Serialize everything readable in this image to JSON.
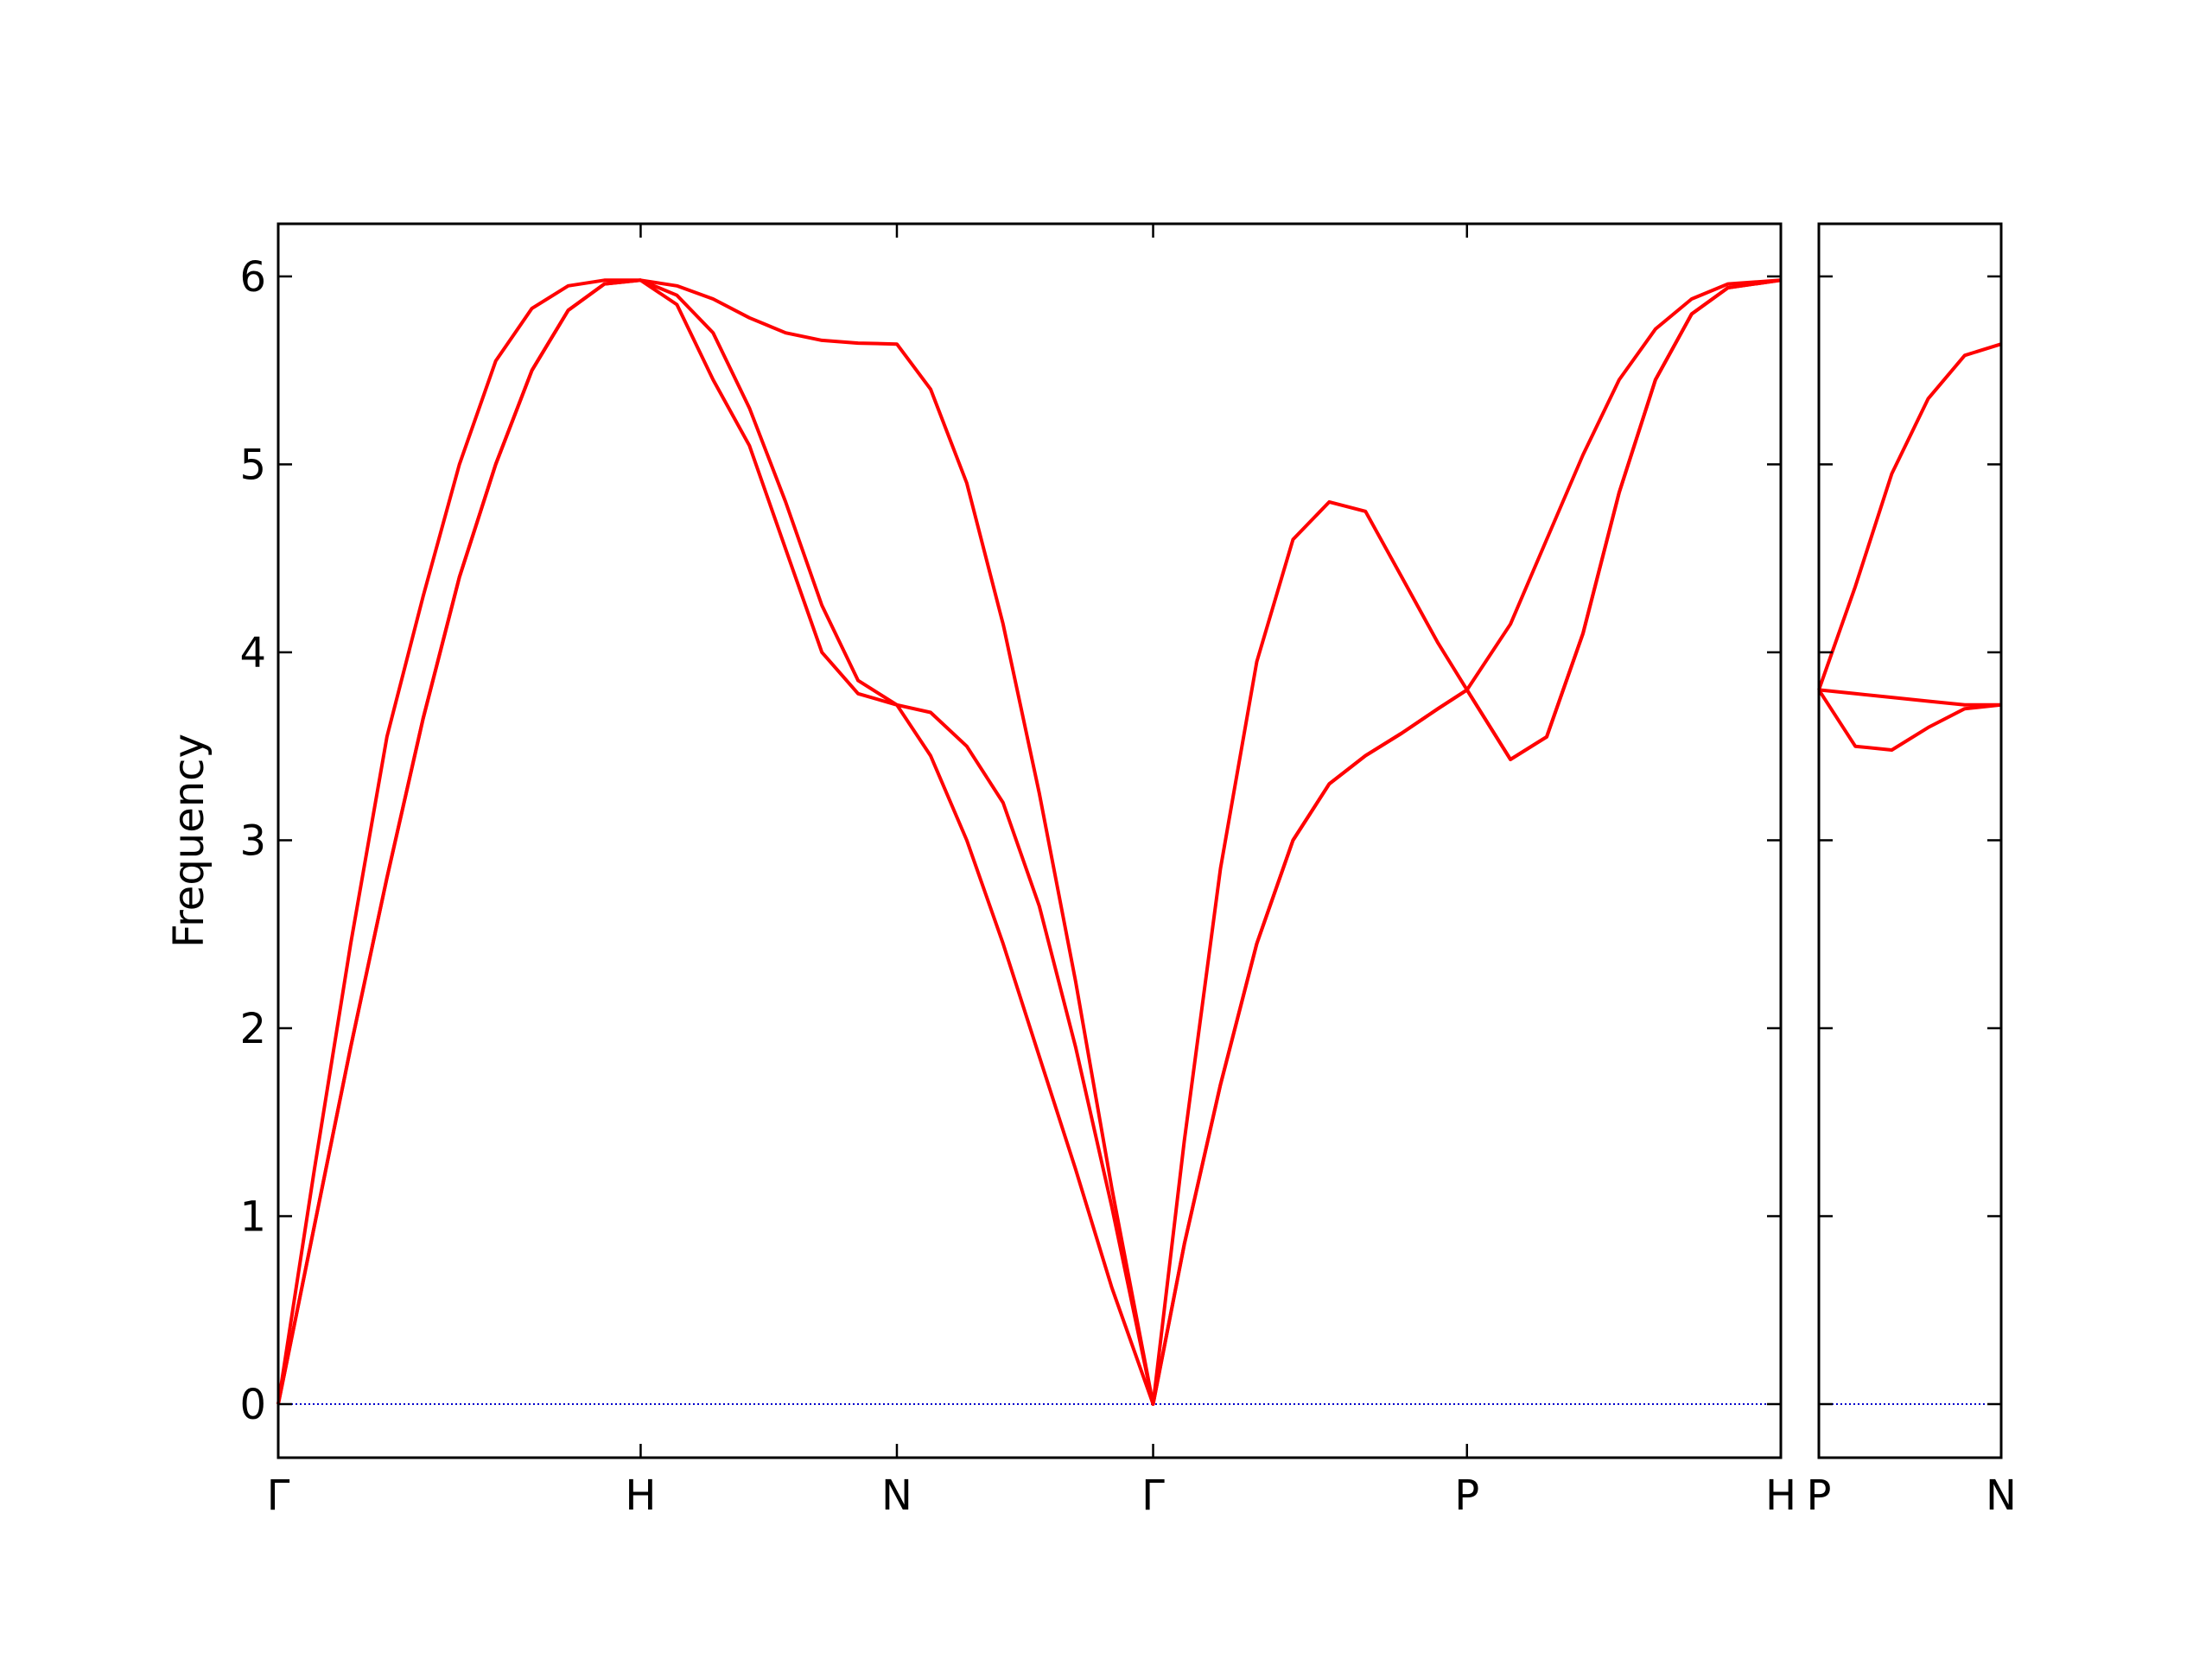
{
  "chart_data": [
    {
      "type": "line",
      "ylabel": "Frequency",
      "xlim": [
        0,
        4.146
      ],
      "ylim": [
        -0.285,
        6.28
      ],
      "xticks": [
        {
          "value": 0,
          "label": "Γ"
        },
        {
          "value": 1,
          "label": "H"
        },
        {
          "value": 1.707,
          "label": "N"
        },
        {
          "value": 2.414,
          "label": "Γ"
        },
        {
          "value": 3.28,
          "label": "P"
        },
        {
          "value": 4.146,
          "label": "H"
        }
      ],
      "yticks": [
        0,
        1,
        2,
        3,
        4,
        5,
        6
      ],
      "show_ytick_labels": true,
      "hline": 0,
      "hline_color": "#0000cc",
      "x": [
        0,
        0.1,
        0.2,
        0.3,
        0.4,
        0.5,
        0.6,
        0.7,
        0.8,
        0.9,
        1.0,
        1.1,
        1.2,
        1.3,
        1.4,
        1.5,
        1.6,
        1.707,
        1.8,
        1.9,
        2.0,
        2.1,
        2.2,
        2.3,
        2.414,
        2.5,
        2.6,
        2.7,
        2.8,
        2.9,
        3.0,
        3.1,
        3.2,
        3.28,
        3.4,
        3.5,
        3.6,
        3.7,
        3.8,
        3.9,
        4.0,
        4.146
      ],
      "series": [
        {
          "color": "#ff0000",
          "values": [
            0,
            1.25,
            2.45,
            3.55,
            4.3,
            5.0,
            5.55,
            5.83,
            5.95,
            5.98,
            5.98,
            5.95,
            5.88,
            5.78,
            5.7,
            5.66,
            5.645,
            5.64,
            5.4,
            4.9,
            4.15,
            3.25,
            2.25,
            1.15,
            0,
            1.4,
            2.85,
            3.95,
            4.6,
            4.8,
            4.75,
            4.4,
            4.05,
            3.8,
            4.15,
            4.6,
            5.05,
            5.45,
            5.72,
            5.88,
            5.96,
            5.98
          ]
        },
        {
          "color": "#ff0000",
          "values": [
            0,
            0.95,
            1.9,
            2.8,
            3.65,
            4.4,
            5.0,
            5.5,
            5.82,
            5.96,
            5.98,
            5.9,
            5.7,
            5.3,
            4.8,
            4.25,
            3.85,
            3.72,
            3.68,
            3.5,
            3.2,
            2.65,
            1.9,
            1.05,
            0,
            0.85,
            1.7,
            2.45,
            3.0,
            3.3,
            3.45,
            3.57,
            3.7,
            3.8,
            3.43,
            3.55,
            4.1,
            4.85,
            5.45,
            5.8,
            5.94,
            5.98
          ]
        },
        {
          "color": "#ff0000",
          "values": [
            0,
            0.95,
            1.9,
            2.8,
            3.65,
            4.4,
            5.0,
            5.5,
            5.82,
            5.96,
            5.98,
            5.85,
            5.45,
            5.1,
            4.55,
            4.0,
            3.78,
            3.72,
            3.45,
            3.0,
            2.45,
            1.85,
            1.25,
            0.62,
            0,
            0.85,
            1.7,
            2.45,
            3.0,
            3.3,
            3.45,
            3.57,
            3.7,
            3.8,
            3.43,
            3.55,
            4.1,
            4.85,
            5.45,
            5.8,
            5.94,
            5.98
          ]
        }
      ]
    },
    {
      "type": "line",
      "xlim": [
        0,
        0.5
      ],
      "ylim": [
        -0.285,
        6.28
      ],
      "xticks": [
        {
          "value": 0,
          "label": "P"
        },
        {
          "value": 0.5,
          "label": "N"
        }
      ],
      "yticks": [
        0,
        1,
        2,
        3,
        4,
        5,
        6
      ],
      "show_ytick_labels": false,
      "hline": 0,
      "hline_color": "#0000cc",
      "x": [
        0,
        0.1,
        0.2,
        0.3,
        0.4,
        0.5
      ],
      "series": [
        {
          "color": "#ff0000",
          "values": [
            3.8,
            4.35,
            4.95,
            5.35,
            5.58,
            5.64
          ]
        },
        {
          "color": "#ff0000",
          "values": [
            3.8,
            3.78,
            3.76,
            3.74,
            3.72,
            3.72
          ]
        },
        {
          "color": "#ff0000",
          "values": [
            3.8,
            3.5,
            3.48,
            3.6,
            3.7,
            3.72
          ]
        }
      ]
    }
  ]
}
